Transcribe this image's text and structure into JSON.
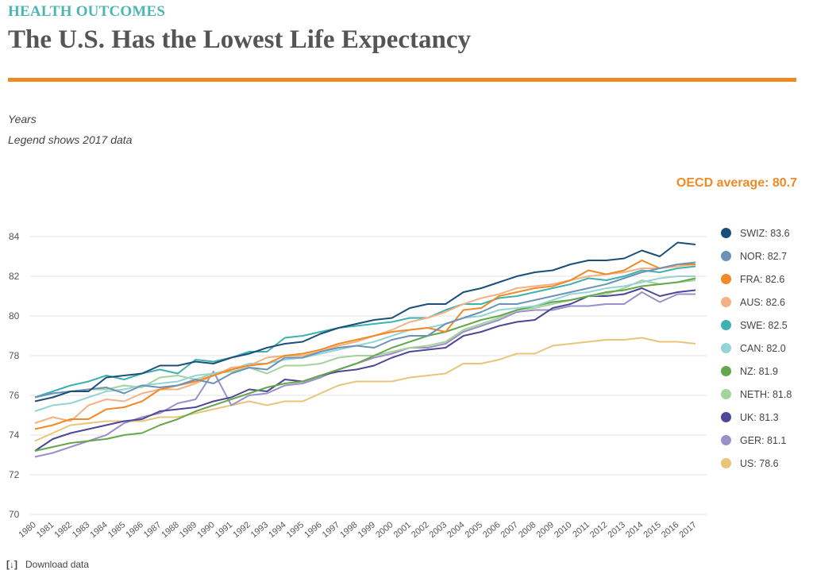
{
  "header": {
    "kicker": "HEALTH OUTCOMES",
    "title": "The U.S. Has the Lowest Life Expectancy",
    "kicker_color": "#4db6b2",
    "rule_color": "#f08a24"
  },
  "notes": {
    "unit": "Years",
    "legend_note": "Legend shows 2017 data"
  },
  "oecd": {
    "label": "OECD average: 80.7",
    "color": "#f08a24"
  },
  "footer": {
    "download_label": "Download data",
    "download_icon": "download-icon"
  },
  "chart_data": {
    "type": "line",
    "title": "The U.S. Has the Lowest Life Expectancy",
    "ylabel": "Years",
    "xlabel": "",
    "ylim": [
      70,
      84
    ],
    "yticks": [
      70,
      72,
      74,
      76,
      78,
      80,
      82,
      84
    ],
    "grid": true,
    "legend_position": "right",
    "x": [
      "1980",
      "1981",
      "1982",
      "1983",
      "1984",
      "1985",
      "1986",
      "1987",
      "1988",
      "1989",
      "1990",
      "1991",
      "1992",
      "1993",
      "1994",
      "1995",
      "1996",
      "1997",
      "1998",
      "1999",
      "2000",
      "2001",
      "2002",
      "2003",
      "2004",
      "2005",
      "2006",
      "2007",
      "2008",
      "2009",
      "2010",
      "2011",
      "2012",
      "2013",
      "2014",
      "2015",
      "2016",
      "2017"
    ],
    "series": [
      {
        "name": "SWIZ",
        "label": "SWIZ: 83.6",
        "color": "#1b4f7a",
        "values": [
          75.7,
          75.9,
          76.2,
          76.2,
          76.9,
          77.0,
          77.1,
          77.5,
          77.5,
          77.7,
          77.6,
          77.9,
          78.1,
          78.4,
          78.6,
          78.7,
          79.1,
          79.4,
          79.6,
          79.8,
          79.9,
          80.4,
          80.6,
          80.6,
          81.2,
          81.4,
          81.7,
          82.0,
          82.2,
          82.3,
          82.6,
          82.8,
          82.8,
          82.9,
          83.3,
          83.0,
          83.7,
          83.6
        ]
      },
      {
        "name": "NOR",
        "label": "NOR: 82.7",
        "color": "#6b93b8",
        "values": [
          75.9,
          76.1,
          76.2,
          76.3,
          76.4,
          76.1,
          76.5,
          76.4,
          76.5,
          76.8,
          76.6,
          77.1,
          77.4,
          77.3,
          77.9,
          77.9,
          78.2,
          78.4,
          78.5,
          78.4,
          78.8,
          79.0,
          79.0,
          79.6,
          79.9,
          80.2,
          80.6,
          80.6,
          80.8,
          81.0,
          81.2,
          81.4,
          81.6,
          81.9,
          82.2,
          82.4,
          82.6,
          82.7
        ]
      },
      {
        "name": "FRA",
        "label": "FRA: 82.6",
        "color": "#f08a24",
        "values": [
          74.3,
          74.5,
          74.8,
          74.8,
          75.3,
          75.4,
          75.7,
          76.3,
          76.5,
          76.7,
          77.0,
          77.3,
          77.5,
          77.6,
          78.0,
          78.1,
          78.3,
          78.6,
          78.8,
          79.0,
          79.2,
          79.3,
          79.4,
          79.2,
          80.3,
          80.4,
          81.0,
          81.2,
          81.4,
          81.5,
          81.8,
          82.3,
          82.1,
          82.3,
          82.8,
          82.4,
          82.6,
          82.6
        ]
      },
      {
        "name": "AUS",
        "label": "AUS: 82.6",
        "color": "#f4b183",
        "values": [
          74.6,
          74.9,
          74.7,
          75.5,
          75.8,
          75.7,
          76.1,
          76.3,
          76.3,
          76.6,
          77.0,
          77.4,
          77.5,
          77.9,
          78.0,
          78.0,
          78.2,
          78.5,
          78.7,
          79.0,
          79.3,
          79.7,
          79.9,
          80.2,
          80.6,
          80.9,
          81.1,
          81.4,
          81.5,
          81.6,
          81.8,
          82.0,
          82.1,
          82.2,
          82.4,
          82.4,
          82.5,
          82.6
        ]
      },
      {
        "name": "SWE",
        "label": "SWE: 82.5",
        "color": "#3fb1ae",
        "values": [
          75.9,
          76.2,
          76.5,
          76.7,
          77.0,
          76.8,
          77.1,
          77.3,
          77.1,
          77.8,
          77.7,
          77.9,
          78.2,
          78.2,
          78.9,
          79.0,
          79.2,
          79.4,
          79.5,
          79.6,
          79.7,
          79.9,
          79.9,
          80.3,
          80.6,
          80.6,
          80.9,
          81.0,
          81.2,
          81.4,
          81.6,
          81.9,
          81.8,
          82.0,
          82.3,
          82.2,
          82.4,
          82.5
        ]
      },
      {
        "name": "CAN",
        "label": "CAN: 82.0",
        "color": "#95d4d6",
        "values": [
          75.2,
          75.5,
          75.6,
          75.9,
          76.2,
          76.3,
          76.5,
          76.6,
          76.7,
          77.0,
          77.1,
          77.3,
          77.6,
          77.6,
          77.8,
          77.9,
          78.1,
          78.3,
          78.5,
          78.7,
          79.0,
          79.3,
          79.4,
          79.6,
          79.9,
          80.0,
          80.3,
          80.4,
          80.5,
          80.8,
          81.1,
          81.2,
          81.4,
          81.5,
          81.7,
          81.9,
          82.0,
          82.0
        ]
      },
      {
        "name": "NZ",
        "label": "NZ: 81.9",
        "color": "#63a84a",
        "values": [
          73.2,
          73.4,
          73.6,
          73.7,
          73.8,
          74.0,
          74.1,
          74.5,
          74.8,
          75.2,
          75.5,
          75.8,
          76.1,
          76.4,
          76.6,
          76.7,
          77.0,
          77.3,
          77.6,
          78.0,
          78.4,
          78.7,
          79.0,
          79.2,
          79.5,
          79.8,
          80.0,
          80.3,
          80.5,
          80.7,
          80.8,
          81.0,
          81.2,
          81.3,
          81.5,
          81.6,
          81.7,
          81.9
        ]
      },
      {
        "name": "NETH",
        "label": "NETH: 81.8",
        "color": "#a6d39d",
        "values": [
          75.9,
          76.1,
          76.2,
          76.3,
          76.3,
          76.5,
          76.4,
          76.9,
          77.0,
          76.8,
          77.1,
          77.2,
          77.4,
          77.1,
          77.5,
          77.5,
          77.6,
          77.9,
          78.0,
          78.0,
          78.2,
          78.4,
          78.5,
          78.7,
          79.3,
          79.6,
          79.9,
          80.3,
          80.4,
          80.6,
          80.8,
          81.0,
          81.1,
          81.4,
          81.8,
          81.6,
          81.7,
          81.8
        ]
      },
      {
        "name": "UK",
        "label": "UK: 81.3",
        "color": "#4e4797",
        "values": [
          73.2,
          73.8,
          74.1,
          74.3,
          74.5,
          74.7,
          74.8,
          75.2,
          75.3,
          75.4,
          75.7,
          75.9,
          76.3,
          76.2,
          76.8,
          76.7,
          77.0,
          77.2,
          77.3,
          77.5,
          77.9,
          78.2,
          78.3,
          78.4,
          79.0,
          79.2,
          79.5,
          79.7,
          79.8,
          80.4,
          80.6,
          81.0,
          81.0,
          81.1,
          81.4,
          81.0,
          81.2,
          81.3
        ]
      },
      {
        "name": "GER",
        "label": "GER: 81.1",
        "color": "#9a90c7",
        "values": [
          72.9,
          73.1,
          73.4,
          73.7,
          74.0,
          74.6,
          74.9,
          75.1,
          75.6,
          75.8,
          77.2,
          75.5,
          76.0,
          76.1,
          76.5,
          76.6,
          76.9,
          77.3,
          77.6,
          77.9,
          78.1,
          78.4,
          78.4,
          78.6,
          79.2,
          79.5,
          79.8,
          80.2,
          80.3,
          80.3,
          80.5,
          80.5,
          80.6,
          80.6,
          81.2,
          80.7,
          81.1,
          81.1
        ]
      },
      {
        "name": "US",
        "label": "US: 78.6",
        "color": "#e8c57b",
        "values": [
          73.7,
          74.1,
          74.5,
          74.6,
          74.7,
          74.7,
          74.7,
          74.9,
          74.9,
          75.1,
          75.3,
          75.5,
          75.7,
          75.5,
          75.7,
          75.7,
          76.1,
          76.5,
          76.7,
          76.7,
          76.7,
          76.9,
          77.0,
          77.1,
          77.6,
          77.6,
          77.8,
          78.1,
          78.1,
          78.5,
          78.6,
          78.7,
          78.8,
          78.8,
          78.9,
          78.7,
          78.7,
          78.6
        ]
      }
    ]
  }
}
